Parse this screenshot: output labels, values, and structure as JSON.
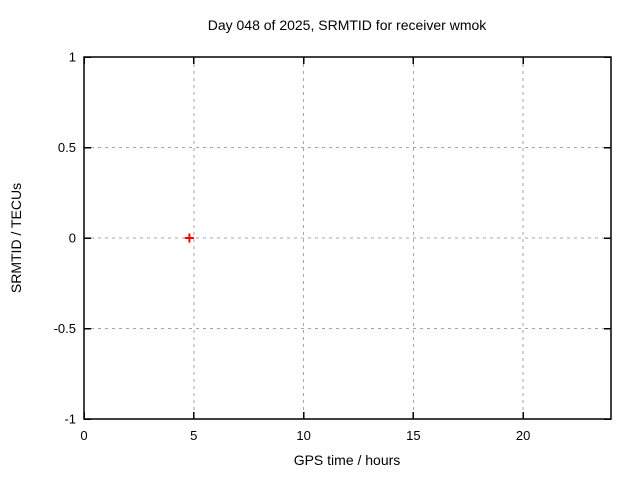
{
  "page": {
    "background": "#ffffff"
  },
  "chart_data": {
    "type": "scatter",
    "title": "Day 048 of 2025, SRMTID for receiver wmok",
    "xlabel": "GPS time / hours",
    "ylabel": "SRMTID / TECUs",
    "xlim": [
      0,
      24
    ],
    "ylim": [
      -1,
      1
    ],
    "xticks": [
      0,
      5,
      10,
      15,
      20
    ],
    "yticks": [
      -1,
      -0.5,
      0,
      0.5,
      1
    ],
    "grid": true,
    "legend_position": "none",
    "series": [
      {
        "name": "SRMTID",
        "marker": "plus",
        "color": "#ff0000",
        "points": [
          {
            "x": 4.8,
            "y": 0.0
          }
        ]
      }
    ],
    "colors": {
      "border": "#000000",
      "grid": "#a6a6a6",
      "text": "#000000"
    }
  }
}
